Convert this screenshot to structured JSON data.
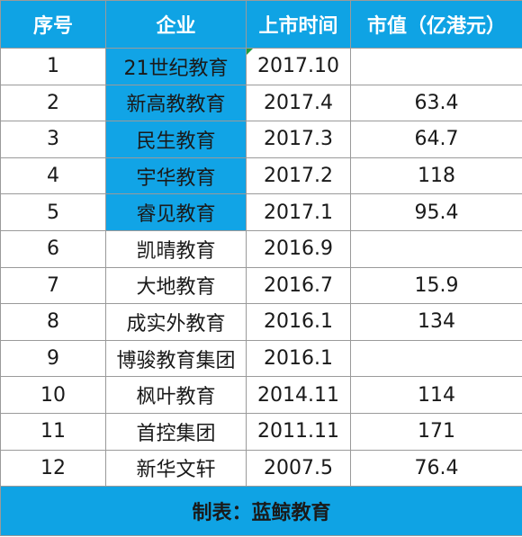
{
  "colors": {
    "header_bg": "#0fa3e4",
    "header_text": "#ffffff",
    "highlight_cell": "#11a4e6",
    "grid_line": "#9a9a9a",
    "marker": "#1e9e3e"
  },
  "table": {
    "headers": [
      "序号",
      "企业",
      "上市时间",
      "市值（亿港元）"
    ],
    "rows": [
      {
        "no": "1",
        "company": "21世纪教育",
        "listed": "2017.10",
        "cap": "",
        "highlight": true,
        "date_marker": true
      },
      {
        "no": "2",
        "company": "新高教教育",
        "listed": "2017.4",
        "cap": "63.4",
        "highlight": true,
        "date_marker": false
      },
      {
        "no": "3",
        "company": "民生教育",
        "listed": "2017.3",
        "cap": "64.7",
        "highlight": true,
        "date_marker": false
      },
      {
        "no": "4",
        "company": "宇华教育",
        "listed": "2017.2",
        "cap": "118",
        "highlight": true,
        "date_marker": false
      },
      {
        "no": "5",
        "company": "睿见教育",
        "listed": "2017.1",
        "cap": "95.4",
        "highlight": true,
        "date_marker": false
      },
      {
        "no": "6",
        "company": "凯晴教育",
        "listed": "2016.9",
        "cap": "",
        "highlight": false,
        "date_marker": false
      },
      {
        "no": "7",
        "company": "大地教育",
        "listed": "2016.7",
        "cap": "15.9",
        "highlight": false,
        "date_marker": false
      },
      {
        "no": "8",
        "company": "成实外教育",
        "listed": "2016.1",
        "cap": "134",
        "highlight": false,
        "date_marker": false
      },
      {
        "no": "9",
        "company": "博骏教育集团",
        "listed": "2016.1",
        "cap": "",
        "highlight": false,
        "date_marker": false
      },
      {
        "no": "10",
        "company": "枫叶教育",
        "listed": "2014.11",
        "cap": "114",
        "highlight": false,
        "date_marker": false
      },
      {
        "no": "11",
        "company": "首控集团",
        "listed": "2011.11",
        "cap": "171",
        "highlight": false,
        "date_marker": false
      },
      {
        "no": "12",
        "company": "新华文轩",
        "listed": "2007.5",
        "cap": "76.4",
        "highlight": false,
        "date_marker": false
      }
    ],
    "footer": "制表：蓝鲸教育"
  }
}
